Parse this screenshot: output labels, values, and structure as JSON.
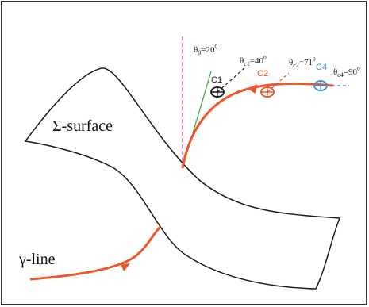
{
  "labels": {
    "surface": "Σ-surface",
    "line": "γ-line",
    "theta0": "θ",
    "theta0_sub": "0",
    "theta0_val": "=20",
    "theta0_deg": "0",
    "thetac1": "θ",
    "thetac1_sub": "c1",
    "thetac1_val": "=40",
    "thetac1_deg": "0",
    "thetac2": "θ",
    "thetac2_sub": "c2",
    "thetac2_val": "=71",
    "thetac2_deg": "0",
    "thetac4": "θ",
    "thetac4_sub": "c4",
    "thetac4_val": "=90",
    "thetac4_deg": "0",
    "c1": "C1",
    "c2": "C2",
    "c4": "C4"
  },
  "colors": {
    "trajectory": "#f0552a",
    "surface_outline": "#1a1a1a",
    "normal_line": "#e0308f",
    "theta0_line": "#3aa63a",
    "c1": "#1a1a1a",
    "c2": "#e8542a",
    "c4": "#3f8fd6"
  }
}
